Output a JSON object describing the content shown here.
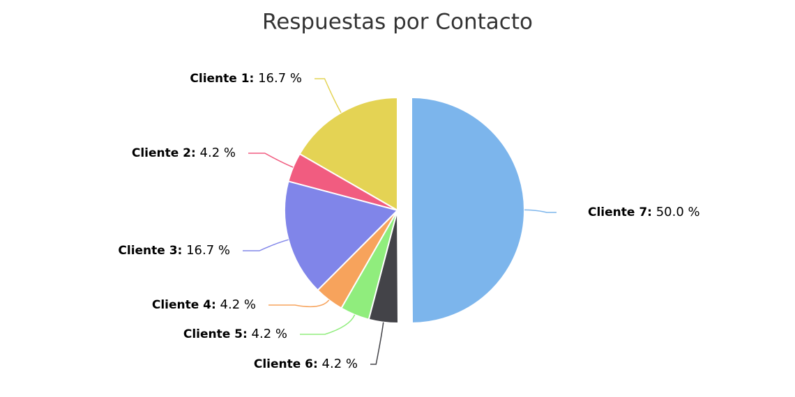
{
  "chart_data": {
    "type": "pie",
    "title": "Respuestas por Contacto",
    "categories": [
      "Cliente 1:",
      "Cliente 2:",
      "Cliente 3:",
      "Cliente 4:",
      "Cliente 5:",
      "Cliente 6:",
      "Cliente 7:"
    ],
    "values": [
      16.7,
      4.2,
      16.7,
      4.2,
      4.2,
      4.2,
      50.0
    ],
    "value_labels": [
      "16.7 %",
      "4.2 %",
      "16.7 %",
      "4.2 %",
      "4.2 %",
      "4.2 %",
      "50.0 %"
    ],
    "colors": [
      "#e4d354",
      "#f15c80",
      "#8085e9",
      "#f7a35c",
      "#90ed7d",
      "#434348",
      "#7cb5ec"
    ],
    "sliced": [
      false,
      false,
      false,
      false,
      false,
      false,
      true
    ]
  }
}
